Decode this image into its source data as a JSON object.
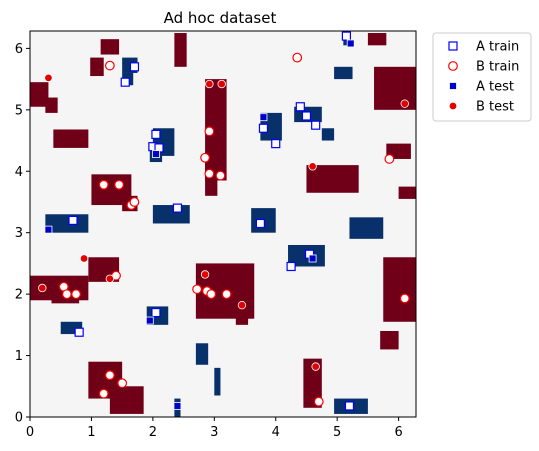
{
  "chart_data": {
    "type": "scatter",
    "title": "Ad hoc dataset",
    "xlabel": "",
    "ylabel": "",
    "xlim": [
      0,
      6.283
    ],
    "ylim": [
      0,
      6.283
    ],
    "xticks": [
      0,
      1,
      2,
      3,
      4,
      5,
      6
    ],
    "yticks": [
      0,
      1,
      2,
      3,
      4,
      5,
      6
    ],
    "grid": false,
    "legend_position": "outside-top-right",
    "background": {
      "type": "heatmap",
      "classes": [
        "neutral",
        "A",
        "B"
      ],
      "colors": {
        "neutral": "#f5f5f5",
        "A": "#08306b",
        "B": "#6f0018"
      },
      "regions": [
        {
          "class": "B",
          "x": [
            0.0,
            0.3
          ],
          "y": [
            5.05,
            5.45
          ]
        },
        {
          "class": "B",
          "x": [
            0.25,
            0.45
          ],
          "y": [
            4.95,
            5.2
          ]
        },
        {
          "class": "B",
          "x": [
            0.38,
            0.95
          ],
          "y": [
            4.38,
            4.68
          ]
        },
        {
          "class": "B",
          "x": [
            0.98,
            1.2
          ],
          "y": [
            5.55,
            5.85
          ]
        },
        {
          "class": "B",
          "x": [
            1.15,
            1.45
          ],
          "y": [
            5.9,
            6.15
          ]
        },
        {
          "class": "B",
          "x": [
            2.35,
            2.55
          ],
          "y": [
            5.7,
            6.25
          ]
        },
        {
          "class": "B",
          "x": [
            2.85,
            3.2
          ],
          "y": [
            3.85,
            5.5
          ]
        },
        {
          "class": "B",
          "x": [
            2.85,
            3.05
          ],
          "y": [
            3.6,
            4.25
          ]
        },
        {
          "class": "B",
          "x": [
            1.0,
            1.65
          ],
          "y": [
            3.45,
            3.95
          ]
        },
        {
          "class": "B",
          "x": [
            1.5,
            1.75
          ],
          "y": [
            3.35,
            3.6
          ]
        },
        {
          "class": "B",
          "x": [
            4.5,
            5.35
          ],
          "y": [
            3.65,
            4.1
          ]
        },
        {
          "class": "B",
          "x": [
            5.6,
            6.283
          ],
          "y": [
            5.0,
            5.7
          ]
        },
        {
          "class": "B",
          "x": [
            5.8,
            6.2
          ],
          "y": [
            4.2,
            4.45
          ]
        },
        {
          "class": "B",
          "x": [
            6.0,
            6.283
          ],
          "y": [
            3.55,
            3.75
          ]
        },
        {
          "class": "B",
          "x": [
            5.5,
            5.8
          ],
          "y": [
            6.05,
            6.25
          ]
        },
        {
          "class": "B",
          "x": [
            0.0,
            0.95
          ],
          "y": [
            1.9,
            2.3
          ]
        },
        {
          "class": "B",
          "x": [
            0.35,
            0.8
          ],
          "y": [
            1.85,
            2.1
          ]
        },
        {
          "class": "B",
          "x": [
            0.95,
            1.45
          ],
          "y": [
            2.2,
            2.6
          ]
        },
        {
          "class": "B",
          "x": [
            2.7,
            3.65
          ],
          "y": [
            1.6,
            2.5
          ]
        },
        {
          "class": "B",
          "x": [
            3.35,
            3.55
          ],
          "y": [
            1.5,
            1.9
          ]
        },
        {
          "class": "B",
          "x": [
            4.45,
            4.75
          ],
          "y": [
            0.15,
            0.95
          ]
        },
        {
          "class": "B",
          "x": [
            5.75,
            6.283
          ],
          "y": [
            1.55,
            2.6
          ]
        },
        {
          "class": "B",
          "x": [
            5.7,
            6.0
          ],
          "y": [
            1.1,
            1.4
          ]
        },
        {
          "class": "B",
          "x": [
            0.95,
            1.5
          ],
          "y": [
            0.3,
            0.9
          ]
        },
        {
          "class": "B",
          "x": [
            1.3,
            1.85
          ],
          "y": [
            0.05,
            0.5
          ]
        },
        {
          "class": "A",
          "x": [
            1.5,
            1.75
          ],
          "y": [
            5.6,
            5.85
          ]
        },
        {
          "class": "A",
          "x": [
            1.5,
            1.68
          ],
          "y": [
            5.4,
            5.6
          ]
        },
        {
          "class": "A",
          "x": [
            2.0,
            2.35
          ],
          "y": [
            4.25,
            4.7
          ]
        },
        {
          "class": "A",
          "x": [
            1.95,
            2.15
          ],
          "y": [
            4.15,
            4.4
          ]
        },
        {
          "class": "A",
          "x": [
            3.75,
            4.1
          ],
          "y": [
            4.5,
            4.95
          ]
        },
        {
          "class": "A",
          "x": [
            4.3,
            4.75
          ],
          "y": [
            4.8,
            5.05
          ]
        },
        {
          "class": "A",
          "x": [
            0.25,
            0.95
          ],
          "y": [
            3.0,
            3.3
          ]
        },
        {
          "class": "A",
          "x": [
            2.0,
            2.6
          ],
          "y": [
            3.15,
            3.45
          ]
        },
        {
          "class": "A",
          "x": [
            3.6,
            4.0
          ],
          "y": [
            3.0,
            3.4
          ]
        },
        {
          "class": "A",
          "x": [
            4.2,
            4.8
          ],
          "y": [
            2.45,
            2.8
          ]
        },
        {
          "class": "A",
          "x": [
            5.2,
            5.75
          ],
          "y": [
            2.9,
            3.25
          ]
        },
        {
          "class": "A",
          "x": [
            1.9,
            2.25
          ],
          "y": [
            1.5,
            1.8
          ]
        },
        {
          "class": "A",
          "x": [
            0.5,
            0.85
          ],
          "y": [
            1.35,
            1.55
          ]
        },
        {
          "class": "A",
          "x": [
            2.7,
            2.9
          ],
          "y": [
            0.85,
            1.2
          ]
        },
        {
          "class": "A",
          "x": [
            4.95,
            5.5
          ],
          "y": [
            0.05,
            0.3
          ]
        },
        {
          "class": "A",
          "x": [
            3.0,
            3.1
          ],
          "y": [
            0.35,
            0.8
          ]
        },
        {
          "class": "A",
          "x": [
            2.35,
            2.45
          ],
          "y": [
            0.0,
            0.3
          ]
        },
        {
          "class": "A",
          "x": [
            4.95,
            5.25
          ],
          "y": [
            5.5,
            5.7
          ]
        },
        {
          "class": "A",
          "x": [
            5.1,
            5.2
          ],
          "y": [
            6.05,
            6.25
          ]
        },
        {
          "class": "A",
          "x": [
            4.75,
            4.95
          ],
          "y": [
            4.5,
            4.7
          ]
        }
      ]
    },
    "series": [
      {
        "name": "A train",
        "marker": "hollow-square",
        "color": "#0000ff",
        "points": [
          [
            1.55,
            5.45
          ],
          [
            1.7,
            5.7
          ],
          [
            2.0,
            4.4
          ],
          [
            2.05,
            4.6
          ],
          [
            2.1,
            4.38
          ],
          [
            3.8,
            4.7
          ],
          [
            4.0,
            4.45
          ],
          [
            4.4,
            5.05
          ],
          [
            4.5,
            4.9
          ],
          [
            4.65,
            4.75
          ],
          [
            0.7,
            3.2
          ],
          [
            2.4,
            3.4
          ],
          [
            3.75,
            3.15
          ],
          [
            4.25,
            2.45
          ],
          [
            4.55,
            2.65
          ],
          [
            2.05,
            1.7
          ],
          [
            0.8,
            1.38
          ],
          [
            5.2,
            0.18
          ],
          [
            5.15,
            6.2
          ]
        ]
      },
      {
        "name": "B train",
        "marker": "hollow-circle",
        "color": "#ff0000",
        "points": [
          [
            1.3,
            5.72
          ],
          [
            1.2,
            3.78
          ],
          [
            1.45,
            3.78
          ],
          [
            1.65,
            3.45
          ],
          [
            1.7,
            3.5
          ],
          [
            2.85,
            4.22
          ],
          [
            2.92,
            4.65
          ],
          [
            2.92,
            3.96
          ],
          [
            3.1,
            3.93
          ],
          [
            4.35,
            5.85
          ],
          [
            5.85,
            4.2
          ],
          [
            0.55,
            2.12
          ],
          [
            0.6,
            2.0
          ],
          [
            0.75,
            2.0
          ],
          [
            1.4,
            2.3
          ],
          [
            2.72,
            2.08
          ],
          [
            2.88,
            2.05
          ],
          [
            2.95,
            2.0
          ],
          [
            3.2,
            2.0
          ],
          [
            1.2,
            0.38
          ],
          [
            1.3,
            0.68
          ],
          [
            1.5,
            0.55
          ],
          [
            4.7,
            0.25
          ],
          [
            6.1,
            1.93
          ]
        ]
      },
      {
        "name": "A test",
        "marker": "filled-square",
        "color": "#0000cc",
        "points": [
          [
            0.3,
            3.05
          ],
          [
            2.05,
            4.28
          ],
          [
            3.8,
            4.88
          ],
          [
            4.6,
            2.58
          ],
          [
            1.95,
            1.57
          ],
          [
            2.4,
            0.18
          ],
          [
            5.22,
            6.08
          ]
        ]
      },
      {
        "name": "B test",
        "marker": "filled-circle",
        "color": "#e50000",
        "points": [
          [
            0.3,
            5.52
          ],
          [
            2.92,
            5.42
          ],
          [
            3.12,
            5.42
          ],
          [
            4.6,
            4.08
          ],
          [
            6.1,
            5.1
          ],
          [
            0.88,
            2.58
          ],
          [
            0.2,
            2.1
          ],
          [
            1.3,
            2.25
          ],
          [
            2.85,
            2.32
          ],
          [
            3.45,
            1.82
          ],
          [
            4.65,
            0.82
          ]
        ]
      }
    ]
  }
}
